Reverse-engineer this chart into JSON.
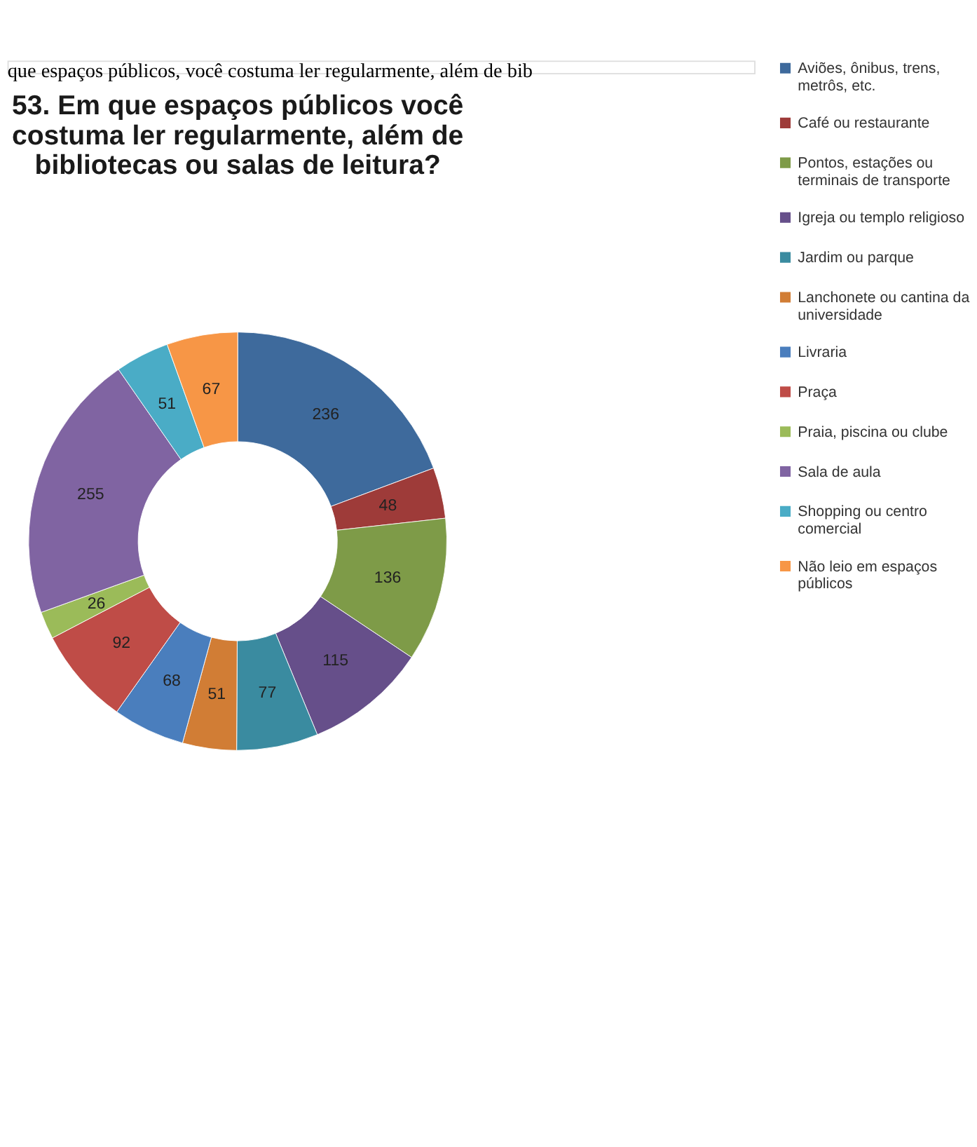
{
  "chart_data": {
    "type": "donut",
    "title": "53. Em que espaços públicos você costuma ler regularmente, além de bibliotecas ou salas de leitura?",
    "annotations": [
      "que espaços públicos, você costuma ler regularmente, além de bib"
    ],
    "categories": [
      "Aviões, ônibus, trens, metrôs, etc.",
      "Café ou restaurante",
      "Pontos, estações ou terminais de transporte",
      "Igreja ou templo religioso",
      "Jardim ou parque",
      "Lanchonete ou cantina da universidade",
      "Livraria",
      "Praça",
      "Praia, piscina ou clube",
      "Sala de aula",
      "Shopping ou centro comercial",
      "Não leio em espaços públicos"
    ],
    "values": [
      236,
      48,
      136,
      115,
      77,
      51,
      68,
      92,
      26,
      255,
      51,
      67
    ],
    "colors": [
      "#3e6a9c",
      "#9e3b39",
      "#7e9b48",
      "#664f8a",
      "#3a8ba0",
      "#d17d35",
      "#4a7ebd",
      "#bf4c47",
      "#9bbb59",
      "#8064a2",
      "#4aacc6",
      "#f79646"
    ],
    "data_labels": true,
    "legend": "right"
  }
}
